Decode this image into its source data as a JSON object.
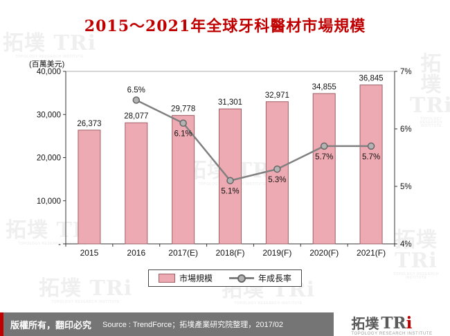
{
  "title": "2015～2021年全球牙科醫材市場規模",
  "y_axis_unit": "(百萬美元)",
  "chart_data": {
    "type": "bar+line combo",
    "categories": [
      "2015",
      "2016",
      "2017(E)",
      "2018(F)",
      "2019(F)",
      "2020(F)",
      "2021(F)"
    ],
    "series": [
      {
        "name": "市場規模",
        "type": "bar",
        "axis": "left",
        "values": [
          26373,
          28077,
          29778,
          31301,
          32971,
          34855,
          36845
        ],
        "labels": [
          "26,373",
          "28,077",
          "29,778",
          "31,301",
          "32,971",
          "34,855",
          "36,845"
        ],
        "color": "#eeaab2",
        "border_color": "#9e5f67"
      },
      {
        "name": "年成長率",
        "type": "line",
        "axis": "right",
        "values": [
          null,
          6.5,
          6.1,
          5.1,
          5.3,
          5.7,
          5.7
        ],
        "labels": [
          null,
          "6.5%",
          "6.1%",
          "5.1%",
          "5.3%",
          "5.7%",
          "5.7%"
        ],
        "label_position": [
          "",
          "above",
          "below",
          "below",
          "below",
          "below",
          "below"
        ],
        "color": "#808080",
        "marker_fill": "#b3b3b3",
        "marker_stroke": "#666666"
      }
    ],
    "left_axis": {
      "min": 0,
      "max": 40000,
      "ticks": [
        "-",
        "10,000",
        "20,000",
        "30,000",
        "40,000"
      ]
    },
    "right_axis": {
      "min": 4,
      "max": 7,
      "ticks": [
        "4%",
        "5%",
        "6%",
        "7%"
      ]
    },
    "legend": [
      "市場規模",
      "年成長率"
    ],
    "grid": "off",
    "legend_position": "bottom-center"
  },
  "footer": {
    "left": "版權所有，翻印必究",
    "source": "Source : TrendForce；拓墣產業研究院整理，2017/02"
  },
  "logo": {
    "zh": "拓墣",
    "latin": "TR",
    "latin_i": "i",
    "subtitle": "TOPOLOGY RESEARCH INSTITUTE"
  },
  "watermark": {
    "text": "拓墣 TRi",
    "subtitle": "TOPOLOGY RESEARCH INSTITUTE"
  }
}
